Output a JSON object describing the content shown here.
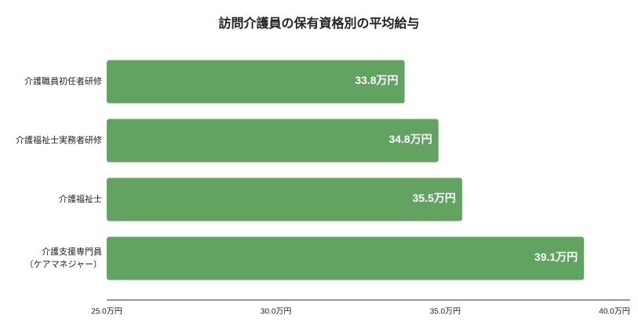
{
  "chart_data": {
    "type": "bar",
    "orientation": "horizontal",
    "title": "訪問介護員の保有資格別の平均給与",
    "categories": [
      "介護職員初任者研修",
      "介護福祉士実務者研修",
      "介護福祉士",
      "介護支援専門員\n（ケアマネジャー）"
    ],
    "values": [
      33.8,
      34.8,
      35.5,
      39.1
    ],
    "value_labels": [
      "33.8万円",
      "34.8万円",
      "35.5万円",
      "39.1万円"
    ],
    "color": "#62a362",
    "xlim": [
      25,
      40
    ],
    "xticks": [
      {
        "value": 25,
        "label": "25.0万円"
      },
      {
        "value": 30,
        "label": "30.0万円"
      },
      {
        "value": 35,
        "label": "35.0万円"
      },
      {
        "value": 40,
        "label": "40.0万円"
      }
    ],
    "grid": false
  }
}
